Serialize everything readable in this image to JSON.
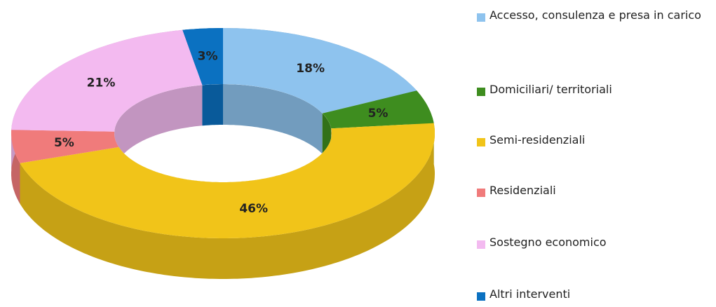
{
  "chart_data": {
    "type": "donut",
    "categories": [
      "Accesso, consulenza e presa in carico",
      "Domiciliari/ territoriali",
      "Semi-residenziali",
      "Residenziali",
      "Sostegno economico",
      "Altri interventi"
    ],
    "values": [
      18,
      5,
      46,
      5,
      21,
      3
    ],
    "value_labels": [
      "18%",
      "5%",
      "46%",
      "5%",
      "21%",
      "3%"
    ],
    "colors": [
      "#8ec3ee",
      "#3e8d1f",
      "#f1c419",
      "#f07b7b",
      "#f3baf0",
      "#0b71c1"
    ],
    "legend": "right"
  }
}
